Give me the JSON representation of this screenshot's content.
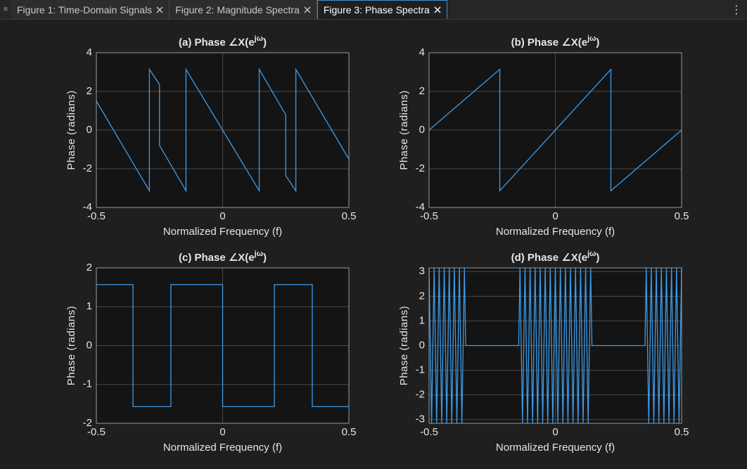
{
  "tabs": [
    "Figure 1: Time-Domain Signals",
    "Figure 2: Magnitude Spectra",
    "Figure 3: Phase Spectra"
  ],
  "chart_data": [
    {
      "type": "line",
      "title": {
        "text": "(a)  Phase  ∠X(e",
        "superscript": "jω",
        "close": ")"
      },
      "xlabel": "Normalized Frequency (f)",
      "ylabel": "Phase (radians)",
      "x": [
        -0.5,
        -0.29,
        -0.29,
        -0.25,
        -0.25,
        -0.145,
        -0.145,
        0,
        0.145,
        0.145,
        0.25,
        0.25,
        0.29,
        0.29,
        0.5
      ],
      "values": [
        1.5,
        -3.14,
        3.14,
        2.36,
        -0.79,
        -3.14,
        3.14,
        0,
        -3.14,
        3.14,
        0.79,
        -2.36,
        -3.14,
        3.14,
        -1.5
      ],
      "color": "#3d9be9",
      "xlim": [
        -0.5,
        0.5
      ],
      "xticks": [
        -0.5,
        0,
        0.5
      ],
      "ylim": [
        -4,
        4
      ],
      "yticks": [
        -4,
        -2,
        0,
        2,
        4
      ],
      "grid": true
    },
    {
      "type": "line",
      "title": {
        "text": "(b)  Phase  ∠X(e",
        "superscript": "jω",
        "close": ")"
      },
      "xlabel": "Normalized Frequency (f)",
      "ylabel": "Phase (radians)",
      "x": [
        -0.5,
        -0.22,
        -0.22,
        0,
        0.22,
        0.22,
        0.5
      ],
      "values": [
        0,
        3.14,
        -3.14,
        0,
        3.14,
        -3.14,
        0
      ],
      "color": "#3d9be9",
      "xlim": [
        -0.5,
        0.5
      ],
      "xticks": [
        -0.5,
        0,
        0.5
      ],
      "ylim": [
        -4,
        4
      ],
      "yticks": [
        -4,
        -2,
        0,
        2,
        4
      ],
      "grid": true
    },
    {
      "type": "line",
      "title": {
        "text": "(c)  Phase  ∠X(e",
        "superscript": "jω",
        "close": ")"
      },
      "xlabel": "Normalized Frequency (f)",
      "ylabel": "Phase (radians)",
      "x": [
        -0.5,
        -0.355,
        -0.355,
        -0.205,
        -0.205,
        0,
        0,
        0.205,
        0.205,
        0.355,
        0.355,
        0.5
      ],
      "values": [
        1.57,
        1.57,
        -1.57,
        -1.57,
        1.57,
        1.57,
        -1.57,
        -1.57,
        1.57,
        1.57,
        -1.57,
        -1.57
      ],
      "color": "#3d9be9",
      "xlim": [
        -0.5,
        0.5
      ],
      "xticks": [
        -0.5,
        0,
        0.5
      ],
      "ylim": [
        -2,
        2
      ],
      "yticks": [
        -2,
        -1,
        0,
        1,
        2
      ],
      "grid": true
    },
    {
      "type": "line",
      "title": {
        "text": "(d)  Phase  ∠X(e",
        "superscript": "jω",
        "close": ")"
      },
      "xlabel": "Normalized Frequency (f)",
      "ylabel": "Phase (radians)",
      "x": [
        -0.5,
        -0.49,
        -0.48,
        -0.47,
        -0.46,
        -0.45,
        -0.44,
        -0.43,
        -0.42,
        -0.41,
        -0.4,
        -0.39,
        -0.38,
        -0.37,
        -0.36,
        -0.355,
        -0.145,
        -0.14,
        -0.13,
        -0.12,
        -0.11,
        -0.1,
        -0.09,
        -0.08,
        -0.07,
        -0.06,
        -0.05,
        -0.04,
        -0.03,
        -0.02,
        -0.01,
        0,
        0.01,
        0.02,
        0.03,
        0.04,
        0.05,
        0.06,
        0.07,
        0.08,
        0.09,
        0.1,
        0.11,
        0.12,
        0.13,
        0.14,
        0.145,
        0.355,
        0.36,
        0.37,
        0.38,
        0.39,
        0.4,
        0.41,
        0.42,
        0.43,
        0.44,
        0.45,
        0.46,
        0.47,
        0.48,
        0.49,
        0.5
      ],
      "values": [
        3.14,
        -3.14,
        3.14,
        -3.14,
        3.14,
        -3.14,
        3.14,
        -3.14,
        3.14,
        -3.14,
        3.14,
        -3.14,
        3.14,
        -3.14,
        3.14,
        0,
        0,
        3.14,
        -3.14,
        3.14,
        -3.14,
        3.14,
        -3.14,
        3.14,
        -3.14,
        3.14,
        -3.14,
        3.14,
        -3.14,
        3.14,
        -3.14,
        3.14,
        -3.14,
        3.14,
        -3.14,
        3.14,
        -3.14,
        3.14,
        -3.14,
        3.14,
        -3.14,
        3.14,
        -3.14,
        3.14,
        -3.14,
        3.14,
        0,
        0,
        3.14,
        -3.14,
        3.14,
        -3.14,
        3.14,
        -3.14,
        3.14,
        -3.14,
        3.14,
        -3.14,
        3.14,
        -3.14,
        3.14,
        -3.14,
        3.14
      ],
      "color": "#3d9be9",
      "xlim": [
        -0.5,
        0.5
      ],
      "xticks": [
        -0.5,
        0,
        0.5
      ],
      "ylim": [
        -3.15,
        3.15
      ],
      "yticks": [
        -3,
        -2,
        -1,
        0,
        1,
        2,
        3
      ],
      "grid": true
    }
  ]
}
